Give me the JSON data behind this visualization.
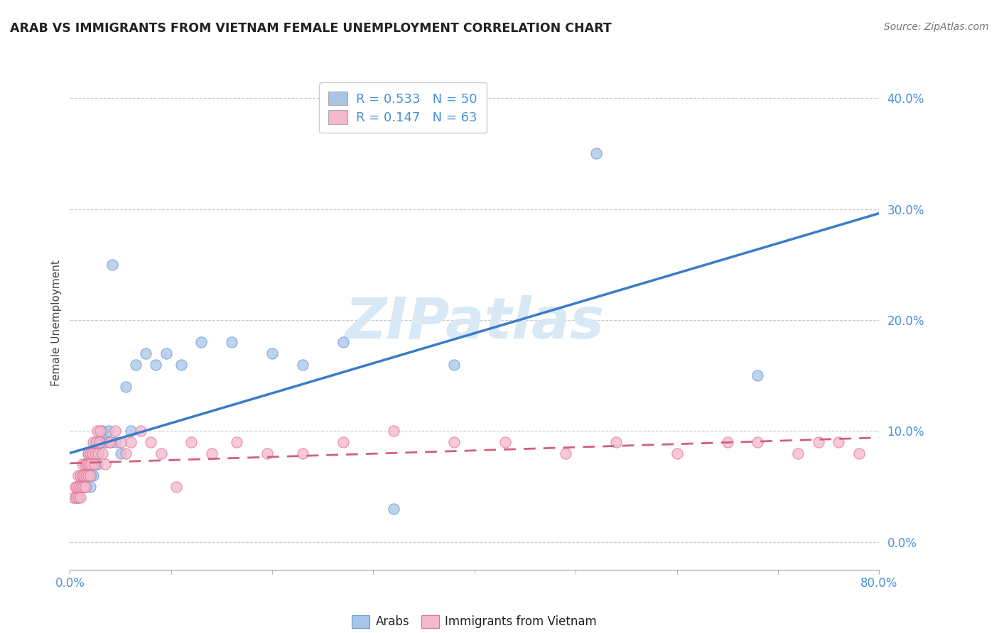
{
  "title": "ARAB VS IMMIGRANTS FROM VIETNAM FEMALE UNEMPLOYMENT CORRELATION CHART",
  "source": "Source: ZipAtlas.com",
  "ylabel": "Female Unemployment",
  "yticks": [
    "0.0%",
    "10.0%",
    "20.0%",
    "30.0%",
    "40.0%"
  ],
  "ytick_vals": [
    0.0,
    0.1,
    0.2,
    0.3,
    0.4
  ],
  "xrange": [
    0.0,
    0.8
  ],
  "yrange": [
    -0.025,
    0.42
  ],
  "arab_R": 0.533,
  "arab_N": 50,
  "vietnam_R": 0.147,
  "vietnam_N": 63,
  "arab_color": "#aac4e8",
  "arab_edge_color": "#5b9bd5",
  "vietnam_color": "#f5b8cc",
  "vietnam_edge_color": "#e07090",
  "arab_line_color": "#3a7cc7",
  "vietnam_line_color": "#d0607a",
  "watermark_color": "#d8e8f4",
  "arab_x": [
    0.005,
    0.007,
    0.008,
    0.01,
    0.01,
    0.012,
    0.013,
    0.014,
    0.015,
    0.015,
    0.016,
    0.017,
    0.018,
    0.018,
    0.019,
    0.02,
    0.02,
    0.021,
    0.022,
    0.022,
    0.023,
    0.024,
    0.025,
    0.026,
    0.027,
    0.028,
    0.03,
    0.032,
    0.035,
    0.038,
    0.04,
    0.042,
    0.045,
    0.05,
    0.055,
    0.06,
    0.065,
    0.075,
    0.085,
    0.095,
    0.11,
    0.13,
    0.16,
    0.2,
    0.23,
    0.27,
    0.32,
    0.38,
    0.52,
    0.68
  ],
  "arab_y": [
    0.04,
    0.05,
    0.04,
    0.05,
    0.06,
    0.05,
    0.06,
    0.05,
    0.06,
    0.07,
    0.05,
    0.06,
    0.07,
    0.08,
    0.06,
    0.05,
    0.07,
    0.06,
    0.07,
    0.08,
    0.06,
    0.07,
    0.08,
    0.09,
    0.07,
    0.08,
    0.09,
    0.1,
    0.09,
    0.1,
    0.09,
    0.25,
    0.09,
    0.08,
    0.14,
    0.1,
    0.16,
    0.17,
    0.16,
    0.17,
    0.16,
    0.18,
    0.18,
    0.17,
    0.16,
    0.18,
    0.03,
    0.16,
    0.35,
    0.15
  ],
  "vietnam_x": [
    0.003,
    0.005,
    0.006,
    0.007,
    0.008,
    0.008,
    0.009,
    0.01,
    0.01,
    0.011,
    0.012,
    0.012,
    0.013,
    0.014,
    0.015,
    0.015,
    0.016,
    0.017,
    0.018,
    0.018,
    0.019,
    0.02,
    0.02,
    0.021,
    0.022,
    0.023,
    0.024,
    0.025,
    0.026,
    0.027,
    0.028,
    0.029,
    0.03,
    0.032,
    0.035,
    0.038,
    0.04,
    0.045,
    0.05,
    0.055,
    0.06,
    0.07,
    0.08,
    0.09,
    0.105,
    0.12,
    0.14,
    0.165,
    0.195,
    0.23,
    0.27,
    0.32,
    0.38,
    0.43,
    0.49,
    0.54,
    0.6,
    0.65,
    0.68,
    0.72,
    0.74,
    0.76,
    0.78
  ],
  "vietnam_y": [
    0.04,
    0.05,
    0.04,
    0.05,
    0.04,
    0.06,
    0.05,
    0.04,
    0.06,
    0.05,
    0.06,
    0.07,
    0.05,
    0.06,
    0.05,
    0.07,
    0.06,
    0.07,
    0.06,
    0.08,
    0.07,
    0.06,
    0.08,
    0.07,
    0.08,
    0.09,
    0.07,
    0.08,
    0.09,
    0.1,
    0.08,
    0.09,
    0.1,
    0.08,
    0.07,
    0.09,
    0.09,
    0.1,
    0.09,
    0.08,
    0.09,
    0.1,
    0.09,
    0.08,
    0.05,
    0.09,
    0.08,
    0.09,
    0.08,
    0.08,
    0.09,
    0.1,
    0.09,
    0.09,
    0.08,
    0.09,
    0.08,
    0.09,
    0.09,
    0.08,
    0.09,
    0.09,
    0.08
  ]
}
